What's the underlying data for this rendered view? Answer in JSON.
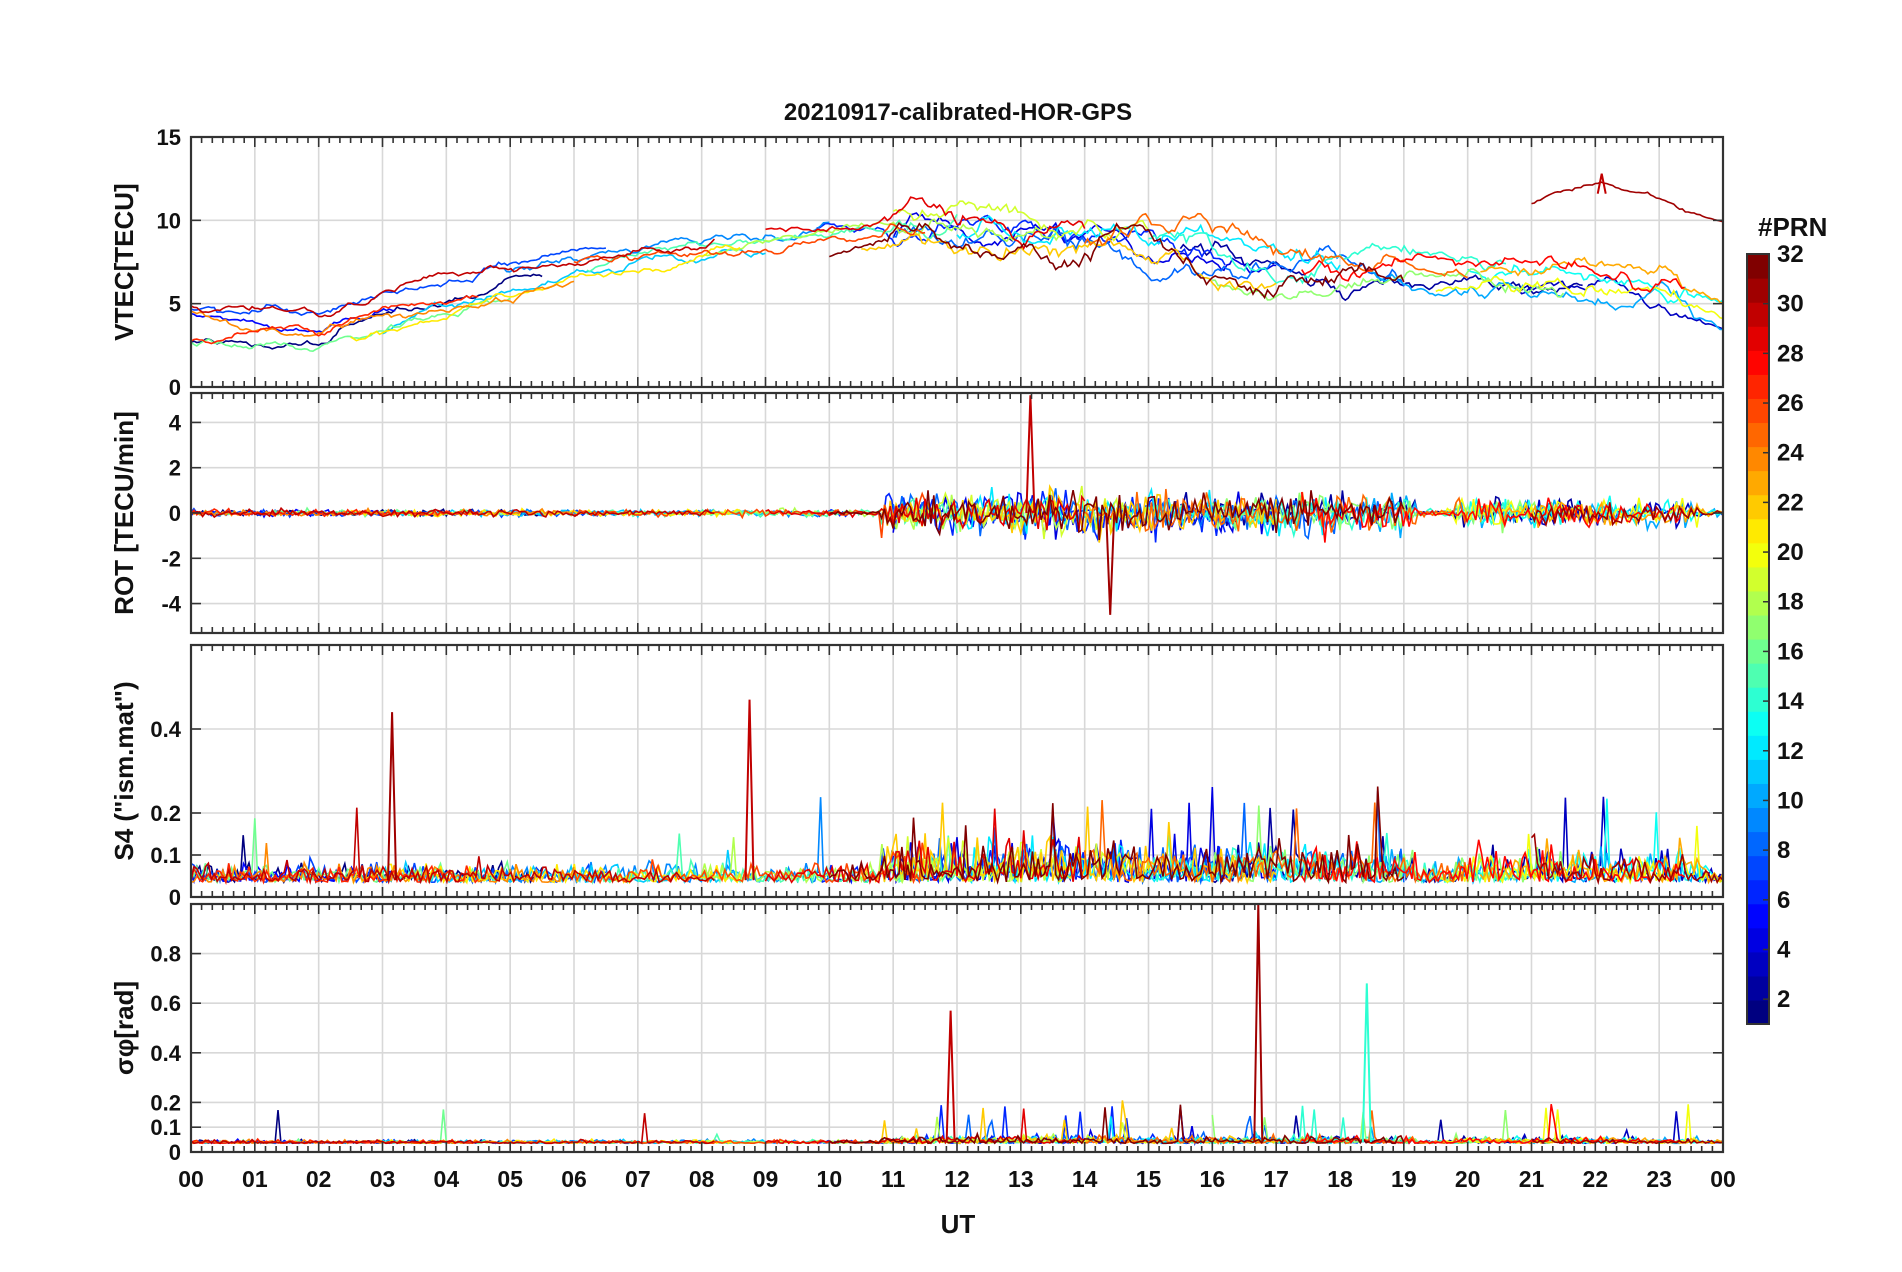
{
  "chart_data": {
    "type": "line",
    "title": "20210917-calibrated-HOR-GPS",
    "xlabel": "UT",
    "x_range_hours": [
      0,
      24
    ],
    "x_tick_labels": [
      "00",
      "01",
      "02",
      "03",
      "04",
      "05",
      "06",
      "07",
      "08",
      "09",
      "10",
      "11",
      "12",
      "13",
      "14",
      "15",
      "16",
      "17",
      "18",
      "19",
      "20",
      "21",
      "22",
      "23",
      "00"
    ],
    "colorbar": {
      "label": "#PRN",
      "range": [
        1,
        32
      ],
      "tick_labels": [
        "2",
        "4",
        "6",
        "8",
        "10",
        "12",
        "14",
        "16",
        "18",
        "20",
        "22",
        "24",
        "26",
        "28",
        "30",
        "32"
      ],
      "colormap": "jet"
    },
    "panels": [
      {
        "id": "vtec",
        "ylabel": "VTEC[TECU]",
        "ylim": [
          0,
          15
        ],
        "yticks": [
          0,
          5,
          10,
          15
        ],
        "description": "Vertical TEC per PRN; rises from ~4 TECU at 00 UT to ~9-11 TECU around 11-15 UT, ~6-8 TECU after 16 UT; PRN 31 reaches ~12.8 TECU near 22 UT"
      },
      {
        "id": "rot",
        "ylabel": "ROT [TECU/min]",
        "ylim": [
          -5.3,
          5.3
        ],
        "yticks": [
          -4,
          -2,
          0,
          2,
          4
        ],
        "description": "Rate of TEC; |ROT| < 1 before 10 UT, enhanced fluctuations up to about +/-5 between 11-19 UT and 20-23 UT"
      },
      {
        "id": "s4",
        "ylabel": "S4 (\"ism.mat\")",
        "ylim": [
          0,
          0.6
        ],
        "yticks": [
          0,
          0.1,
          0.2,
          0.4
        ],
        "description": "Amplitude scintillation index; mostly 0.02-0.15 with spikes up to ~0.47 near 08.7 UT and ~0.43 near 03.2 UT"
      },
      {
        "id": "sigphi",
        "ylabel": "σφ[rad]",
        "ylim": [
          0,
          1.0
        ],
        "yticks": [
          0,
          0.1,
          0.2,
          0.4,
          0.6,
          0.8
        ],
        "description": "Phase scintillation index; baseline ~0.03-0.06 rad, peaks ~0.57 rad at 11.9 UT, ~1.0 rad at 16.7 UT, ~0.68 rad at 18.4 UT"
      }
    ],
    "events": [
      {
        "panel": "sigphi",
        "x": 11.9,
        "y": 0.57
      },
      {
        "panel": "sigphi",
        "x": 16.72,
        "y": 1.0
      },
      {
        "panel": "sigphi",
        "x": 18.42,
        "y": 0.68
      },
      {
        "panel": "s4",
        "x": 8.75,
        "y": 0.47
      },
      {
        "panel": "s4",
        "x": 3.15,
        "y": 0.44
      },
      {
        "panel": "vtec",
        "x": 22.1,
        "y": 12.8
      },
      {
        "panel": "rot",
        "x": 13.15,
        "y": 5.2
      },
      {
        "panel": "rot",
        "x": 14.4,
        "y": -4.5
      }
    ]
  }
}
